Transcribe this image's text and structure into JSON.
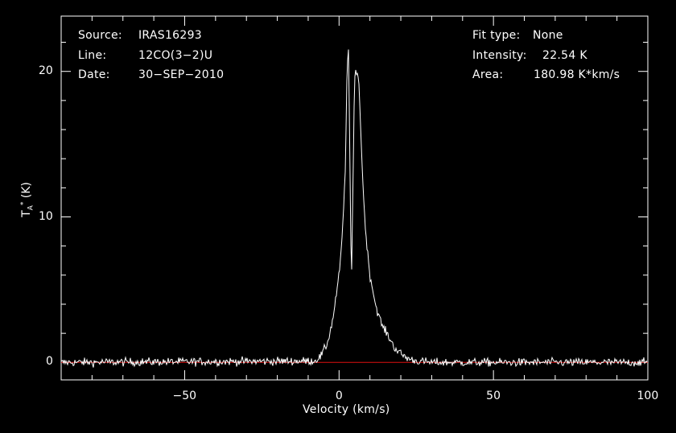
{
  "chart_data": {
    "type": "line",
    "xlabel": "Velocity (km/s)",
    "ylabel_main": "T",
    "ylabel_sub": "A",
    "ylabel_sup": "*",
    "ylabel_unit": "(K)",
    "xlim": [
      -90,
      100
    ],
    "ylim": [
      -1.2,
      23.8
    ],
    "xticks": [
      -50,
      0,
      50,
      100
    ],
    "yticks": [
      0,
      10,
      20
    ],
    "xtick_labels": [
      "−50",
      "0",
      "50",
      "100"
    ],
    "ytick_labels": [
      "0",
      "10",
      "20"
    ],
    "baseline": 0,
    "noise_rms": 0.28,
    "series": [
      {
        "x": [
          -90,
          -8,
          -6,
          -4,
          -3,
          -2,
          -1,
          0,
          1,
          2,
          2.5,
          3,
          3.5,
          4,
          4.5,
          5,
          5.5,
          6,
          6.5,
          7,
          8,
          9,
          10,
          12,
          14,
          16,
          18,
          20,
          22,
          25,
          30,
          100
        ],
        "values": [
          0,
          0.1,
          0.4,
          1.2,
          2.0,
          3.0,
          4.5,
          6.0,
          8.5,
          13.0,
          19.0,
          22.5,
          14.0,
          5.0,
          12.0,
          19.5,
          20.0,
          20.0,
          19.0,
          16.0,
          11.0,
          8.0,
          6.0,
          3.8,
          2.5,
          1.8,
          1.0,
          0.6,
          0.3,
          0.1,
          0,
          0
        ]
      }
    ],
    "colors": {
      "spectrum": "#ffffff",
      "baseline": "#dd1111",
      "frame": "#ffffff"
    }
  },
  "info_left": {
    "source_label": "Source:",
    "source_value": "IRAS16293",
    "line_label": "Line:",
    "line_value": "12CO(3−2)U",
    "date_label": "Date:",
    "date_value": "30−SEP−2010"
  },
  "info_right": {
    "fit_label": "Fit type:",
    "fit_value": "None",
    "intensity_label": "Intensity:",
    "intensity_value": "22.54 K",
    "area_label": "Area:",
    "area_value": "180.98 K*km/s"
  }
}
